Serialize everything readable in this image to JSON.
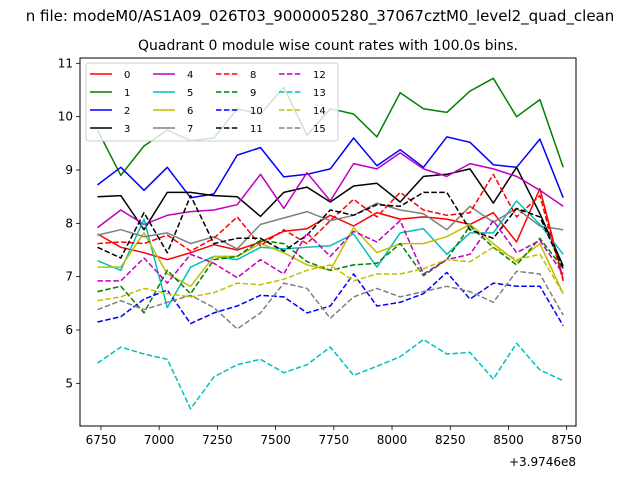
{
  "figure": {
    "suptitle": "n file: modeM0/AS1A09_026T03_9000005280_37067cztM0_level2_quad_clean"
  },
  "chart_data": {
    "type": "line",
    "title": "Quadrant 0 module wise count rates with 100.0s bins.",
    "xlabel": "",
    "ylabel": "",
    "x_offset_label": "+3.9746e8",
    "xlim": [
      6660,
      8790
    ],
    "ylim": [
      4.2,
      11.1
    ],
    "xticks": [
      6750,
      7000,
      7250,
      7500,
      7750,
      8000,
      8250,
      8500,
      8750
    ],
    "yticks": [
      5,
      6,
      7,
      8,
      9,
      10,
      11
    ],
    "legend_position": "upper-left",
    "grid": false,
    "x": [
      6735,
      6835,
      6935,
      7035,
      7135,
      7235,
      7335,
      7435,
      7535,
      7635,
      7735,
      7835,
      7935,
      8035,
      8135,
      8235,
      8335,
      8435,
      8535,
      8635,
      8735
    ],
    "series": [
      {
        "name": "0",
        "color": "#ff0000",
        "dash": "solid",
        "values": [
          7.8,
          7.55,
          7.45,
          7.32,
          7.45,
          7.6,
          7.5,
          7.65,
          7.85,
          7.9,
          8.15,
          7.95,
          8.2,
          8.08,
          8.12,
          8.08,
          7.98,
          8.2,
          7.65,
          8.65,
          6.95
        ]
      },
      {
        "name": "1",
        "color": "#008000",
        "dash": "solid",
        "values": [
          9.75,
          8.9,
          9.45,
          9.75,
          9.55,
          9.6,
          10.15,
          10.05,
          10.55,
          9.65,
          10.15,
          10.05,
          9.62,
          10.45,
          10.15,
          10.08,
          10.48,
          10.72,
          10.0,
          10.32,
          9.05
        ]
      },
      {
        "name": "2",
        "color": "#0000ff",
        "dash": "solid",
        "values": [
          8.72,
          9.05,
          8.62,
          9.05,
          8.48,
          8.55,
          9.28,
          9.42,
          8.87,
          8.92,
          9.02,
          9.6,
          9.08,
          9.38,
          9.05,
          9.62,
          9.52,
          9.1,
          9.05,
          9.58,
          8.48
        ]
      },
      {
        "name": "3",
        "color": "#000000",
        "dash": "solid",
        "values": [
          8.5,
          8.52,
          7.88,
          8.58,
          8.58,
          8.52,
          8.5,
          8.13,
          8.58,
          8.68,
          8.4,
          8.7,
          8.75,
          8.4,
          8.88,
          8.92,
          9.02,
          8.38,
          9.05,
          8.18,
          7.2
        ]
      },
      {
        "name": "4",
        "color": "#bf00bf",
        "dash": "solid",
        "values": [
          7.92,
          8.25,
          7.98,
          8.15,
          8.22,
          8.25,
          8.35,
          8.92,
          8.28,
          8.95,
          8.42,
          9.12,
          9.02,
          9.32,
          9.02,
          8.88,
          9.12,
          9.02,
          8.88,
          8.62,
          8.32
        ]
      },
      {
        "name": "5",
        "color": "#00bfbf",
        "dash": "solid",
        "values": [
          7.3,
          7.12,
          8.08,
          6.42,
          7.18,
          7.38,
          7.32,
          7.55,
          7.52,
          7.55,
          7.58,
          7.8,
          7.18,
          7.82,
          7.9,
          7.42,
          7.82,
          7.82,
          8.42,
          7.98,
          7.42
        ]
      },
      {
        "name": "6",
        "color": "#bfbf00",
        "dash": "solid",
        "values": [
          7.18,
          7.18,
          7.82,
          7.05,
          6.82,
          7.38,
          7.38,
          7.62,
          7.45,
          7.22,
          7.12,
          7.92,
          7.45,
          7.62,
          7.62,
          7.75,
          7.98,
          7.62,
          7.28,
          7.62,
          6.68
        ]
      },
      {
        "name": "7",
        "color": "#808080",
        "dash": "solid",
        "values": [
          7.78,
          7.88,
          7.75,
          7.82,
          7.62,
          7.75,
          7.52,
          7.98,
          8.1,
          8.22,
          8.05,
          8.15,
          8.38,
          8.25,
          8.18,
          7.88,
          8.32,
          8.02,
          8.28,
          7.95,
          7.88
        ]
      },
      {
        "name": "8",
        "color": "#ff0000",
        "dash": "dashed",
        "values": [
          7.62,
          7.65,
          7.62,
          7.78,
          7.48,
          7.72,
          8.12,
          7.58,
          7.88,
          7.62,
          8.05,
          8.45,
          8.12,
          8.58,
          8.25,
          8.15,
          8.2,
          8.92,
          8.12,
          8.52,
          6.92
        ]
      },
      {
        "name": "9",
        "color": "#008000",
        "dash": "dashed",
        "values": [
          6.72,
          6.82,
          6.32,
          7.12,
          6.68,
          7.32,
          7.38,
          7.68,
          7.62,
          7.28,
          7.12,
          7.22,
          7.25,
          7.62,
          7.02,
          7.32,
          7.95,
          7.55,
          7.22,
          7.72,
          7.15
        ]
      },
      {
        "name": "10",
        "color": "#0000ff",
        "dash": "dashed",
        "values": [
          6.15,
          6.25,
          6.58,
          6.75,
          6.12,
          6.32,
          6.45,
          6.65,
          6.62,
          6.32,
          6.45,
          7.05,
          6.45,
          6.52,
          6.68,
          7.08,
          6.58,
          6.88,
          6.82,
          6.82,
          6.08
        ]
      },
      {
        "name": "11",
        "color": "#000000",
        "dash": "dashed",
        "values": [
          7.55,
          7.35,
          8.2,
          7.45,
          8.52,
          7.62,
          7.72,
          7.72,
          7.48,
          7.78,
          8.25,
          8.15,
          8.35,
          8.32,
          8.58,
          8.58,
          7.88,
          7.72,
          8.28,
          8.12,
          7.15
        ]
      },
      {
        "name": "12",
        "color": "#bf00bf",
        "dash": "dashed",
        "values": [
          6.92,
          6.92,
          7.35,
          6.88,
          7.42,
          7.25,
          6.98,
          7.32,
          7.05,
          7.82,
          7.38,
          7.85,
          7.65,
          8.05,
          7.05,
          7.32,
          7.42,
          8.05,
          7.45,
          7.68,
          7.05
        ]
      },
      {
        "name": "13",
        "color": "#00bfbf",
        "dash": "dashed",
        "values": [
          5.38,
          5.68,
          5.55,
          5.45,
          4.52,
          5.12,
          5.35,
          5.45,
          5.2,
          5.35,
          5.68,
          5.15,
          5.32,
          5.5,
          5.82,
          5.55,
          5.58,
          5.08,
          5.75,
          5.25,
          5.05
        ]
      },
      {
        "name": "14",
        "color": "#bfbf00",
        "dash": "dashed",
        "values": [
          6.55,
          6.62,
          6.78,
          6.68,
          6.62,
          6.7,
          6.88,
          6.85,
          6.95,
          7.12,
          7.22,
          6.92,
          7.05,
          7.05,
          7.15,
          7.32,
          7.28,
          7.55,
          7.32,
          7.42,
          6.68
        ]
      },
      {
        "name": "15",
        "color": "#808080",
        "dash": "dashed",
        "values": [
          6.38,
          6.55,
          6.38,
          6.52,
          6.65,
          6.42,
          6.02,
          6.32,
          6.88,
          6.78,
          6.22,
          6.62,
          6.78,
          6.62,
          6.72,
          6.82,
          6.72,
          6.52,
          7.1,
          7.05,
          6.28
        ]
      }
    ]
  }
}
